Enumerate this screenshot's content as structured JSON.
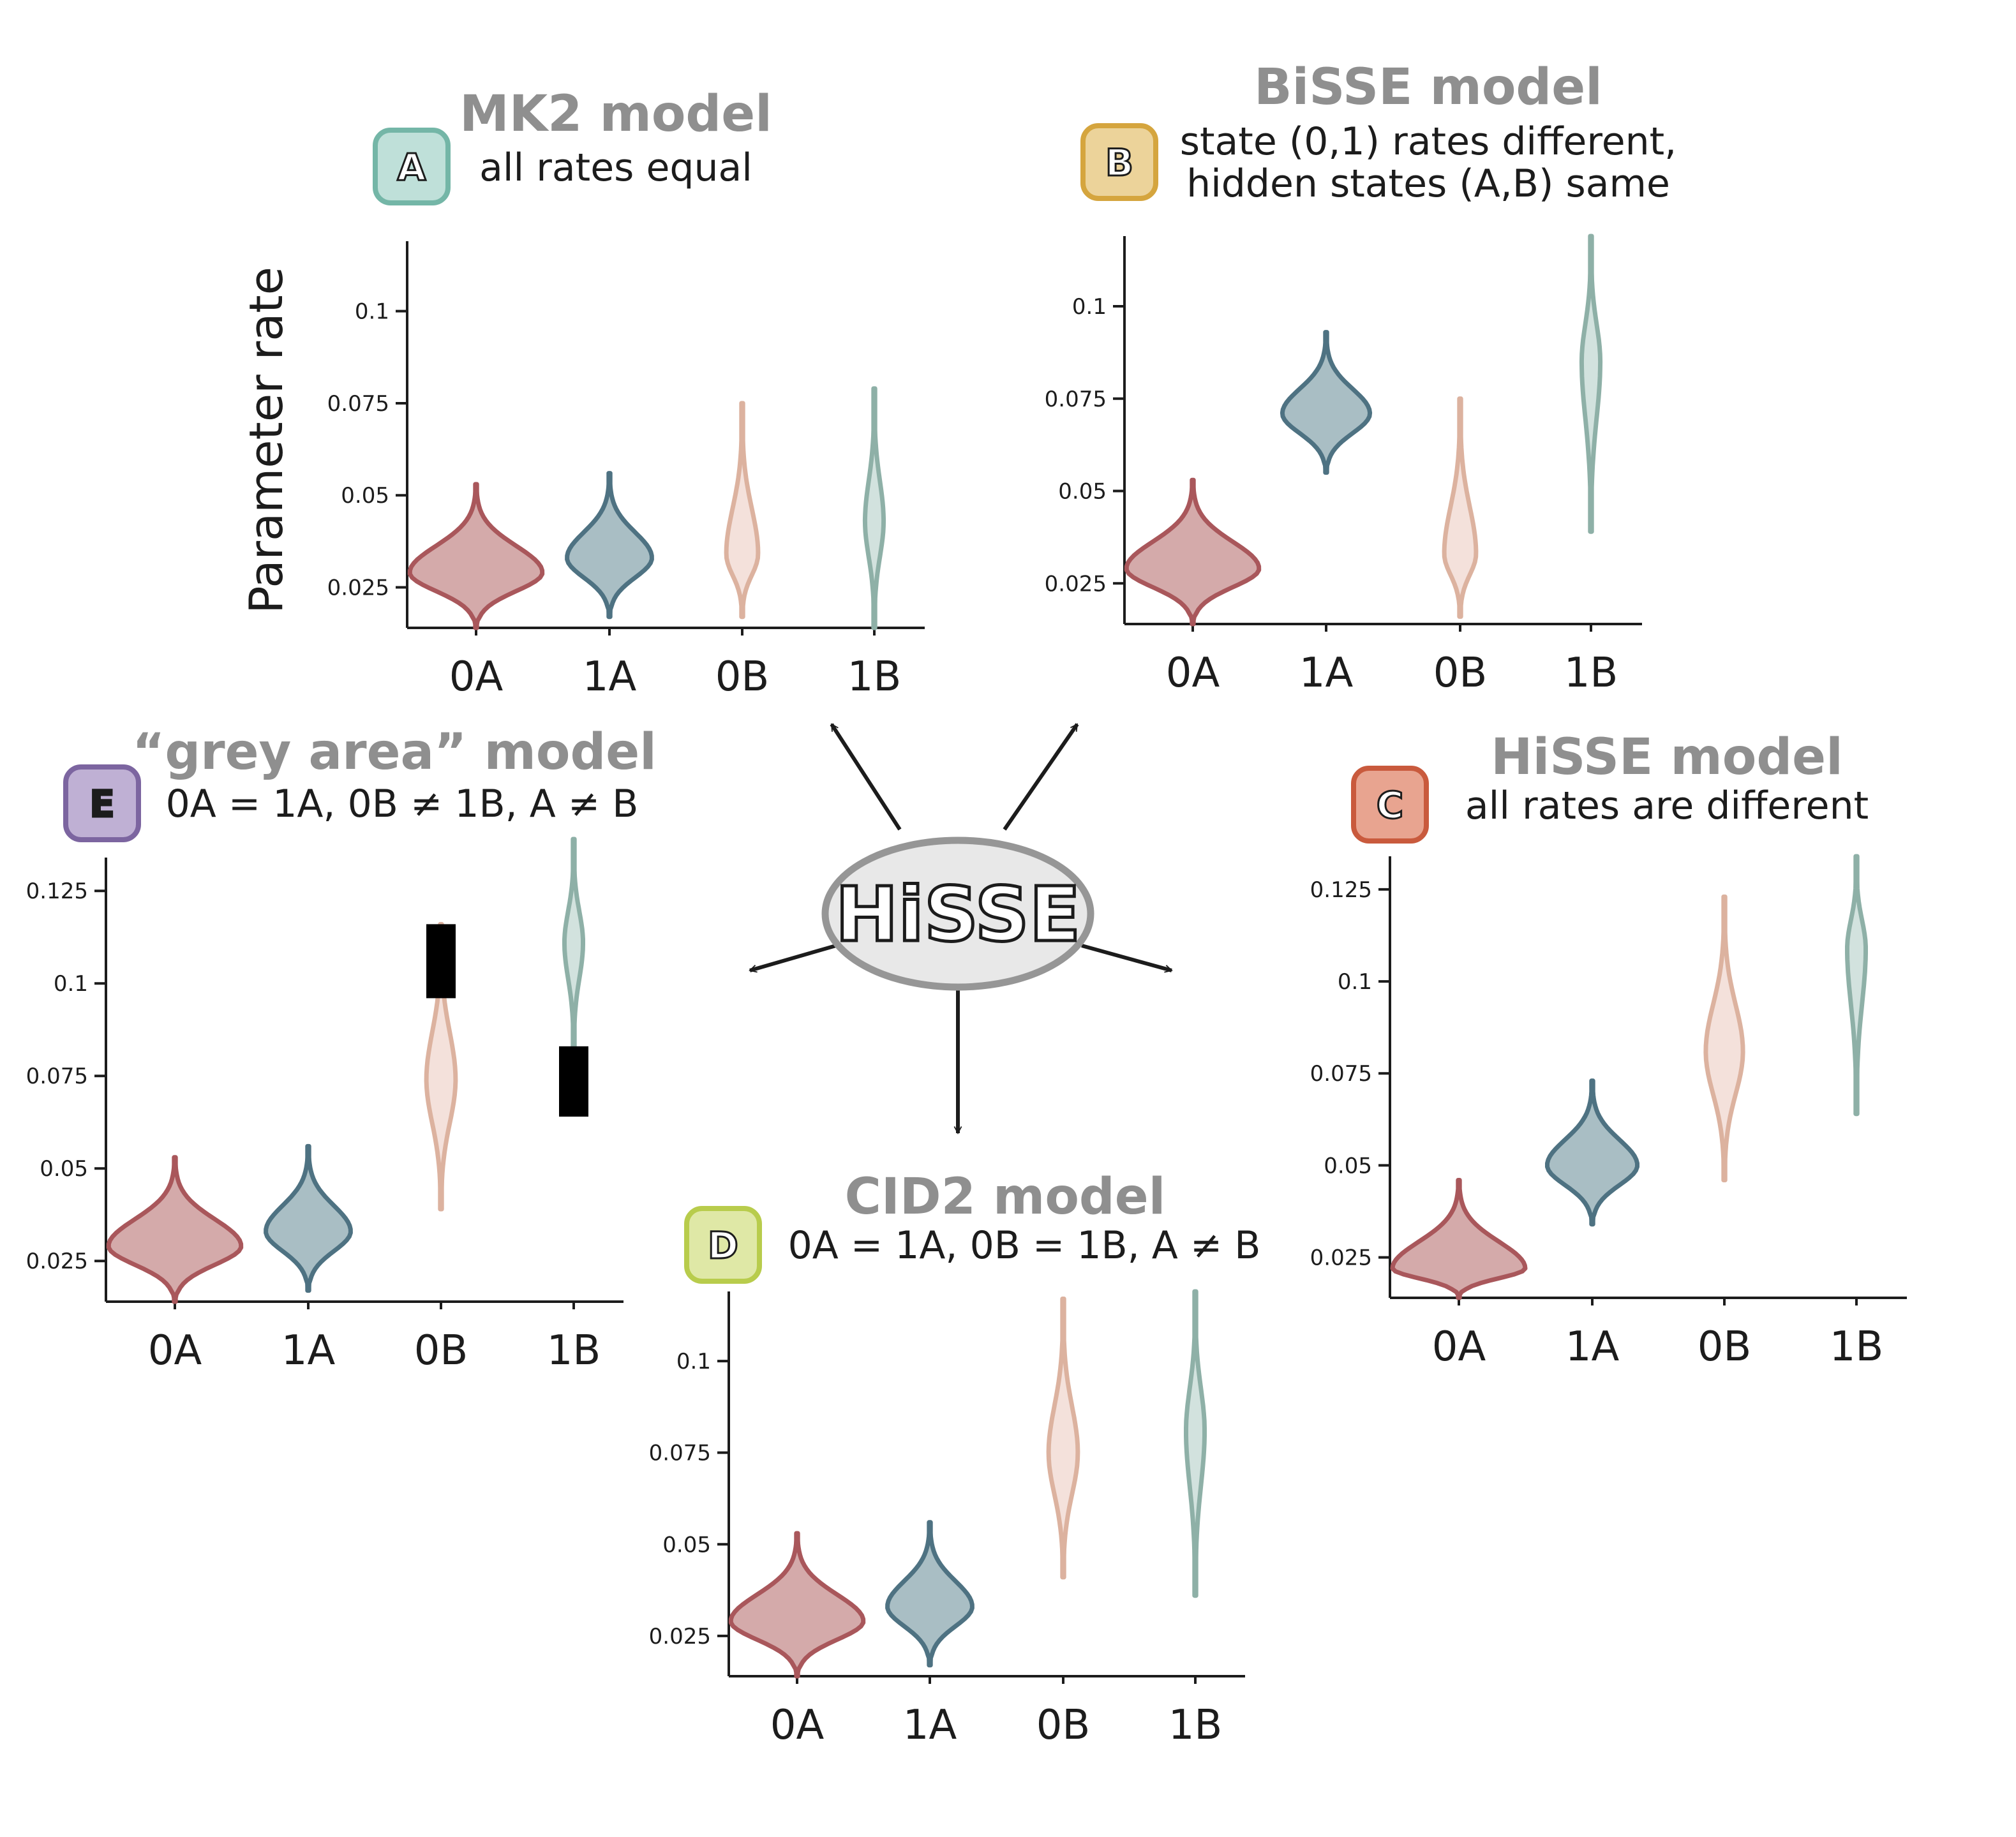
{
  "colors": {
    "0A": {
      "fill": "#d4aaaa",
      "stroke": "#a9575b"
    },
    "1A": {
      "fill": "#a9bec4",
      "stroke": "#4e7282"
    },
    "0B": {
      "fill": "#f4e1db",
      "stroke": "#dcb29f"
    },
    "1B": {
      "fill": "#d2e2de",
      "stroke": "#8eb0a7"
    }
  },
  "hub": {
    "label": "HiSSE"
  },
  "y_axis_label": "Parameter rate",
  "panels": [
    {
      "id": "A",
      "title": "MK2 model",
      "subtitle": [
        "all rates equal"
      ],
      "badge": {
        "letter": "A",
        "fill": "#bfe0d9",
        "stroke": "#74b6a7"
      },
      "chart_data": {
        "type": "violin",
        "categories": [
          "0A",
          "1A",
          "0B",
          "1B"
        ],
        "yticks": [
          0.025,
          0.05,
          0.075,
          0.1
        ],
        "ytick_labels": [
          "0.025",
          "0.05",
          "0.075",
          "0.1"
        ],
        "ylim": [
          0.014,
          0.119
        ],
        "series": [
          {
            "category": "0A",
            "min": 0.014,
            "mode": 0.029,
            "max": 0.053,
            "spread": 1.0
          },
          {
            "category": "1A",
            "min": 0.017,
            "mode": 0.033,
            "max": 0.056,
            "spread": 0.64
          },
          {
            "category": "0B",
            "min": 0.017,
            "mode": 0.034,
            "max": 0.075,
            "spread": 0.24
          },
          {
            "category": "1B",
            "min": 0.014,
            "mode": 0.043,
            "max": 0.079,
            "spread": 0.14
          }
        ]
      }
    },
    {
      "id": "B",
      "title": "BiSSE model",
      "subtitle": [
        "state (0,1) rates different,",
        "hidden states (A,B) same"
      ],
      "badge": {
        "letter": "B",
        "fill": "#ecd39a",
        "stroke": "#d5a53e"
      },
      "chart_data": {
        "type": "violin",
        "categories": [
          "0A",
          "1A",
          "0B",
          "1B"
        ],
        "yticks": [
          0.025,
          0.05,
          0.075,
          0.1
        ],
        "ytick_labels": [
          "0.025",
          "0.05",
          "0.075",
          "0.1"
        ],
        "ylim": [
          0.014,
          0.119
        ],
        "series": [
          {
            "category": "0A",
            "min": 0.014,
            "mode": 0.029,
            "max": 0.053,
            "spread": 1.0
          },
          {
            "category": "1A",
            "min": 0.055,
            "mode": 0.071,
            "max": 0.093,
            "spread": 0.66
          },
          {
            "category": "0B",
            "min": 0.016,
            "mode": 0.033,
            "max": 0.075,
            "spread": 0.24
          },
          {
            "category": "1B",
            "min": 0.039,
            "mode": 0.085,
            "max": 0.119,
            "spread": 0.14
          }
        ]
      }
    },
    {
      "id": "C",
      "title": "HiSSE model",
      "subtitle": [
        "all rates are different"
      ],
      "badge": {
        "letter": "C",
        "fill": "#e8a490",
        "stroke": "#c95a3d"
      },
      "chart_data": {
        "type": "violin",
        "categories": [
          "0A",
          "1A",
          "0B",
          "1B"
        ],
        "yticks": [
          0.025,
          0.05,
          0.075,
          0.1,
          0.125
        ],
        "ytick_labels": [
          "0.025",
          "0.05",
          "0.075",
          "0.1",
          "0.125"
        ],
        "ylim": [
          0.014,
          0.134
        ],
        "series": [
          {
            "category": "0A",
            "min": 0.014,
            "mode": 0.022,
            "max": 0.046,
            "spread": 1.0
          },
          {
            "category": "1A",
            "min": 0.034,
            "mode": 0.05,
            "max": 0.073,
            "spread": 0.68
          },
          {
            "category": "0B",
            "min": 0.046,
            "mode": 0.081,
            "max": 0.123,
            "spread": 0.28
          },
          {
            "category": "1B",
            "min": 0.064,
            "mode": 0.109,
            "max": 0.134,
            "spread": 0.14
          }
        ]
      }
    },
    {
      "id": "D",
      "title": "CID2 model",
      "subtitle": [
        "0A = 1A, 0B = 1B, A ≠ B"
      ],
      "badge": {
        "letter": "D",
        "fill": "#dfe8a6",
        "stroke": "#b8cc4c"
      },
      "chart_data": {
        "type": "violin",
        "categories": [
          "0A",
          "1A",
          "0B",
          "1B"
        ],
        "yticks": [
          0.025,
          0.05,
          0.075,
          0.1
        ],
        "ytick_labels": [
          "0.025",
          "0.05",
          "0.075",
          "0.1"
        ],
        "ylim": [
          0.014,
          0.119
        ],
        "series": [
          {
            "category": "0A",
            "min": 0.014,
            "mode": 0.029,
            "max": 0.053,
            "spread": 1.0
          },
          {
            "category": "1A",
            "min": 0.017,
            "mode": 0.033,
            "max": 0.056,
            "spread": 0.64
          },
          {
            "category": "0B",
            "min": 0.041,
            "mode": 0.075,
            "max": 0.117,
            "spread": 0.22
          },
          {
            "category": "1B",
            "min": 0.036,
            "mode": 0.081,
            "max": 0.119,
            "spread": 0.14
          }
        ]
      }
    },
    {
      "id": "E",
      "title": "“grey area” model",
      "subtitle": [
        "0A = 1A, 0B ≠ 1B, A ≠ B"
      ],
      "badge": {
        "letter": "E",
        "fill": "#bfb0d4",
        "stroke": "#7c65a0"
      },
      "chart_data": {
        "type": "violin",
        "categories": [
          "0A",
          "1A",
          "0B",
          "1B"
        ],
        "yticks": [
          0.025,
          0.05,
          0.075,
          0.1,
          0.125
        ],
        "ytick_labels": [
          "0.025",
          "0.05",
          "0.075",
          "0.1",
          "0.125"
        ],
        "ylim": [
          0.014,
          0.134
        ],
        "series": [
          {
            "category": "0A",
            "min": 0.014,
            "mode": 0.029,
            "max": 0.053,
            "spread": 1.0
          },
          {
            "category": "1A",
            "min": 0.017,
            "mode": 0.033,
            "max": 0.056,
            "spread": 0.64
          },
          {
            "category": "0B",
            "min": 0.039,
            "mode": 0.074,
            "max": 0.116,
            "spread": 0.22
          },
          {
            "category": "1B",
            "min": 0.082,
            "mode": 0.111,
            "max": 0.139,
            "spread": 0.14
          }
        ],
        "blocks": [
          {
            "category": "0B",
            "y_low": 0.096,
            "y_high": 0.116
          },
          {
            "category": "1B",
            "y_low": 0.064,
            "y_high": 0.083
          }
        ]
      }
    }
  ]
}
